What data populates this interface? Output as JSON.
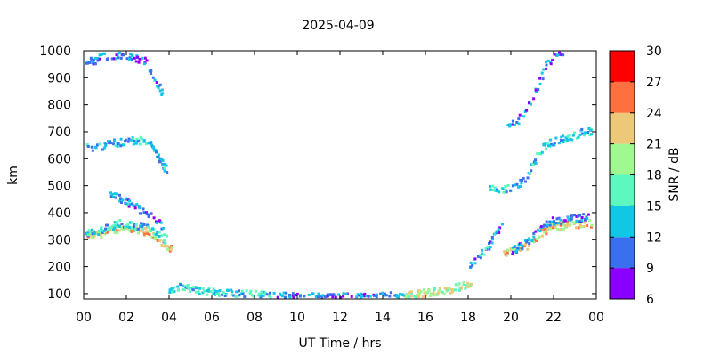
{
  "chart_data": {
    "type": "heatmap",
    "title": "2025-04-09",
    "xlabel": "UT Time / hrs",
    "ylabel": "km",
    "xlim": [
      0,
      24
    ],
    "ylim": [
      80,
      1000
    ],
    "x_ticks": [
      "00",
      "02",
      "04",
      "06",
      "08",
      "10",
      "12",
      "14",
      "16",
      "18",
      "20",
      "22",
      "00"
    ],
    "y_ticks": [
      "100",
      "200",
      "300",
      "400",
      "500",
      "600",
      "700",
      "800",
      "900",
      "1000"
    ],
    "colorbar": {
      "label": "SNR / dB",
      "ticks": [
        "6",
        "9",
        "12",
        "15",
        "18",
        "21",
        "24",
        "27",
        "30"
      ],
      "range": [
        6,
        30
      ],
      "bands": [
        {
          "from": 6,
          "to": 9,
          "color": "#8a00ff"
        },
        {
          "from": 9,
          "to": 12,
          "color": "#3a6ff0"
        },
        {
          "from": 12,
          "to": 15,
          "color": "#10c8e6"
        },
        {
          "from": 15,
          "to": 18,
          "color": "#5cf8c0"
        },
        {
          "from": 18,
          "to": 21,
          "color": "#a0f890"
        },
        {
          "from": 21,
          "to": 24,
          "color": "#ecc878"
        },
        {
          "from": 24,
          "to": 27,
          "color": "#ff7040"
        },
        {
          "from": 27,
          "to": 30,
          "color": "#ff0000"
        }
      ]
    },
    "traces": [
      {
        "pts": [
          [
            0.1,
            320
          ],
          [
            0.5,
            322
          ],
          [
            1.0,
            330
          ],
          [
            1.5,
            345
          ],
          [
            2.0,
            348
          ],
          [
            2.5,
            342
          ],
          [
            3.0,
            330
          ],
          [
            3.3,
            315
          ],
          [
            3.6,
            295
          ],
          [
            3.9,
            275
          ],
          [
            4.1,
            270
          ]
        ],
        "snr": 22
      },
      {
        "pts": [
          [
            0.1,
            330
          ],
          [
            0.6,
            335
          ],
          [
            1.1,
            350
          ],
          [
            1.6,
            365
          ],
          [
            2.1,
            362
          ],
          [
            2.6,
            355
          ],
          [
            3.1,
            345
          ],
          [
            3.5,
            320
          ],
          [
            3.9,
            300
          ]
        ],
        "snr": 14
      },
      {
        "pts": [
          [
            1.2,
            470
          ],
          [
            1.7,
            455
          ],
          [
            2.2,
            430
          ],
          [
            2.6,
            415
          ],
          [
            2.9,
            400
          ],
          [
            3.2,
            385
          ],
          [
            3.5,
            365
          ],
          [
            3.8,
            345
          ]
        ],
        "snr": 11
      },
      {
        "pts": [
          [
            0.1,
            650
          ],
          [
            0.5,
            648
          ],
          [
            1.0,
            655
          ],
          [
            1.5,
            665
          ],
          [
            2.0,
            668
          ],
          [
            2.5,
            672
          ],
          [
            2.9,
            668
          ],
          [
            3.1,
            655
          ],
          [
            3.3,
            630
          ],
          [
            3.5,
            600
          ],
          [
            3.7,
            580
          ],
          [
            3.9,
            560
          ]
        ],
        "snr": 13
      },
      {
        "pts": [
          [
            0.1,
            970
          ],
          [
            0.4,
            965
          ],
          [
            0.8,
            980
          ],
          [
            1.2,
            990
          ],
          [
            1.6,
            985
          ],
          [
            2.0,
            990
          ],
          [
            2.4,
            975
          ],
          [
            2.8,
            970
          ],
          [
            3.1,
            930
          ],
          [
            3.4,
            880
          ],
          [
            3.7,
            840
          ]
        ],
        "snr": 11
      },
      {
        "pts": [
          [
            4.0,
            120
          ],
          [
            4.5,
            130
          ],
          [
            5.0,
            122
          ],
          [
            5.5,
            115
          ],
          [
            6.0,
            110
          ],
          [
            6.5,
            108
          ],
          [
            7.0,
            105
          ],
          [
            7.5,
            103
          ],
          [
            8.0,
            100
          ],
          [
            8.5,
            98
          ],
          [
            9.0,
            97
          ]
        ],
        "snr": 14
      },
      {
        "pts": [
          [
            9.0,
            95
          ],
          [
            10.0,
            93
          ],
          [
            11.0,
            92
          ],
          [
            12.0,
            92
          ],
          [
            13.0,
            93
          ],
          [
            14.0,
            94
          ],
          [
            15.0,
            97
          ]
        ],
        "snr": 11
      },
      {
        "pts": [
          [
            15.0,
            100
          ],
          [
            15.5,
            103
          ],
          [
            16.0,
            108
          ],
          [
            16.5,
            112
          ],
          [
            17.0,
            118
          ],
          [
            17.5,
            128
          ],
          [
            17.9,
            138
          ],
          [
            18.2,
            140
          ]
        ],
        "snr": 20
      },
      {
        "pts": [
          [
            19.6,
            255
          ],
          [
            20.1,
            260
          ],
          [
            20.6,
            275
          ],
          [
            21.0,
            295
          ],
          [
            21.4,
            330
          ],
          [
            21.8,
            350
          ],
          [
            22.3,
            355
          ],
          [
            22.8,
            360
          ],
          [
            23.3,
            362
          ],
          [
            23.8,
            365
          ]
        ],
        "snr": 22
      },
      {
        "pts": [
          [
            20.0,
            265
          ],
          [
            20.5,
            280
          ],
          [
            20.9,
            310
          ],
          [
            21.3,
            345
          ],
          [
            21.7,
            370
          ],
          [
            22.2,
            378
          ],
          [
            22.7,
            380
          ],
          [
            23.2,
            385
          ],
          [
            23.7,
            390
          ]
        ],
        "snr": 11
      },
      {
        "pts": [
          [
            19.0,
            490
          ],
          [
            19.5,
            490
          ],
          [
            20.0,
            495
          ],
          [
            20.5,
            520
          ],
          [
            20.9,
            570
          ],
          [
            21.3,
            630
          ],
          [
            21.7,
            660
          ],
          [
            22.2,
            672
          ],
          [
            22.7,
            682
          ],
          [
            23.2,
            700
          ],
          [
            23.8,
            710
          ]
        ],
        "snr": 14
      },
      {
        "pts": [
          [
            19.8,
            735
          ],
          [
            20.2,
            740
          ],
          [
            20.6,
            770
          ],
          [
            21.0,
            830
          ],
          [
            21.3,
            890
          ],
          [
            21.6,
            950
          ],
          [
            22.0,
            985
          ],
          [
            22.5,
            995
          ]
        ],
        "snr": 11
      },
      {
        "pts": [
          [
            18.0,
            195
          ],
          [
            18.3,
            230
          ],
          [
            18.7,
            260
          ],
          [
            19.0,
            290
          ],
          [
            19.3,
            330
          ],
          [
            19.6,
            360
          ]
        ],
        "snr": 12
      }
    ]
  }
}
